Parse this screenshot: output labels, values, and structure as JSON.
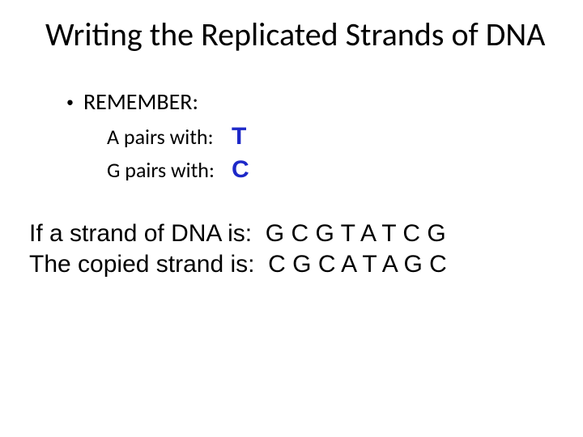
{
  "colors": {
    "text": "#000000",
    "accent_blue": "#1d28c8",
    "background": "#ffffff"
  },
  "typography": {
    "title_fontsize": 40,
    "bullet_fontsize": 28,
    "pair_label_fontsize": 26,
    "pair_answer_fontsize": 30,
    "strand_fontsize": 30,
    "title_font": "Calibri",
    "body_font": "Calibri",
    "strand_font": "Arial"
  },
  "title": "Writing the Replicated Strands of DNA",
  "bullet": {
    "marker": "•",
    "text": "REMEMBER:"
  },
  "pairs": [
    {
      "label": "A pairs with:",
      "answer": "T",
      "answer_color": "#1d28c8"
    },
    {
      "label": "G pairs with:",
      "answer": "C",
      "answer_color": "#1d28c8"
    }
  ],
  "strands": {
    "line1_label": "If a strand of DNA is:  ",
    "line1_seq": "G C G T A T C G",
    "line2_label": "The copied strand is:  ",
    "line2_seq": "C G C A T A G C"
  }
}
